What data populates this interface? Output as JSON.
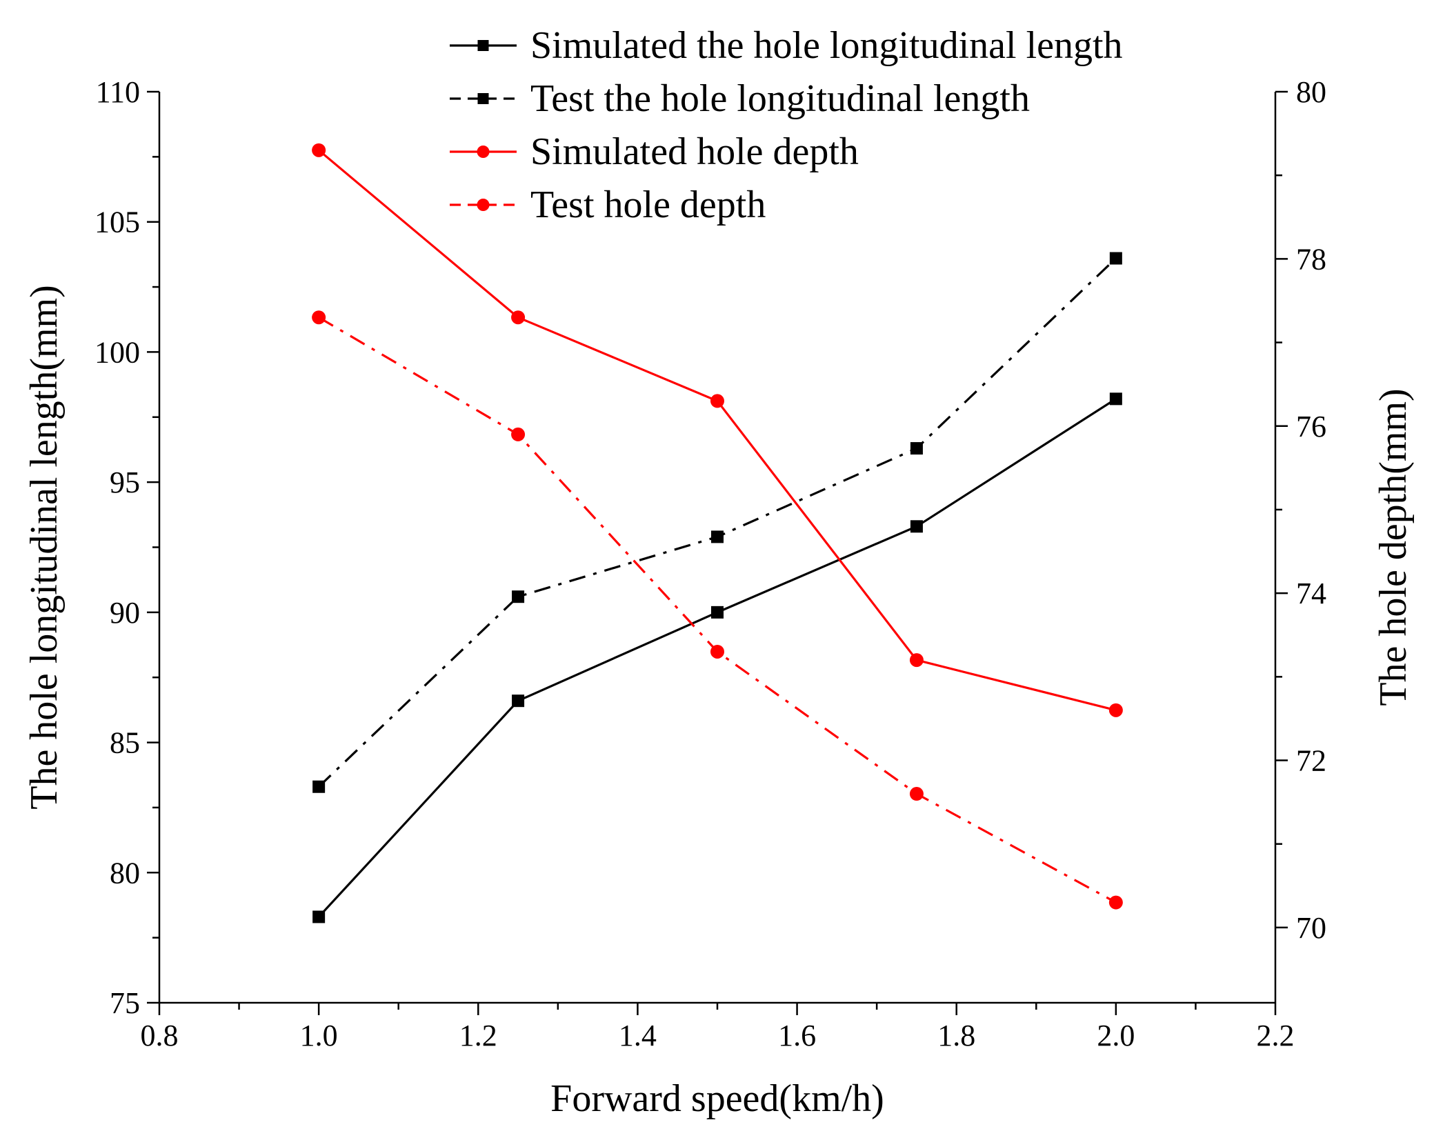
{
  "chart_data": {
    "type": "line",
    "title": "",
    "xlabel": "Forward speed(km/h)",
    "ylabel": "The hole longitudinal length(mm)",
    "y2label": "The hole depth(mm)",
    "xlim": [
      0.8,
      2.2
    ],
    "ylim": [
      75,
      110
    ],
    "y2lim": [
      69.1,
      80
    ],
    "x_ticks": [
      "0.8",
      "1.0",
      "1.2",
      "1.4",
      "1.6",
      "1.8",
      "2.0",
      "2.2"
    ],
    "y_ticks": [
      "75",
      "80",
      "85",
      "90",
      "95",
      "100",
      "105",
      "110"
    ],
    "y2_ticks": [
      "70",
      "72",
      "74",
      "76",
      "78",
      "80"
    ],
    "legend_position": "top-center",
    "series": [
      {
        "name": "Simulated the hole longitudinal length",
        "axis": "left",
        "color": "#000000",
        "line_style": "solid",
        "marker": "square",
        "x": [
          1.0,
          1.25,
          1.5,
          1.75,
          2.0
        ],
        "values": [
          78.3,
          86.6,
          90.0,
          93.3,
          98.2
        ]
      },
      {
        "name": "Test the hole longitudinal length",
        "axis": "left",
        "color": "#000000",
        "line_style": "dash-dot",
        "marker": "square",
        "x": [
          1.0,
          1.25,
          1.5,
          1.75,
          2.0
        ],
        "values": [
          83.3,
          90.6,
          92.9,
          96.3,
          103.6
        ]
      },
      {
        "name": "Simulated hole depth",
        "axis": "right",
        "color": "#ff0000",
        "line_style": "solid",
        "marker": "circle",
        "x": [
          1.0,
          1.25,
          1.5,
          1.75,
          2.0
        ],
        "values": [
          79.3,
          77.3,
          76.3,
          73.2,
          72.6
        ]
      },
      {
        "name": "Test hole depth",
        "axis": "right",
        "color": "#ff0000",
        "line_style": "dash-dot",
        "marker": "circle",
        "x": [
          1.0,
          1.25,
          1.5,
          1.75,
          2.0
        ],
        "values": [
          77.3,
          75.9,
          73.3,
          71.6,
          70.3
        ]
      }
    ]
  }
}
